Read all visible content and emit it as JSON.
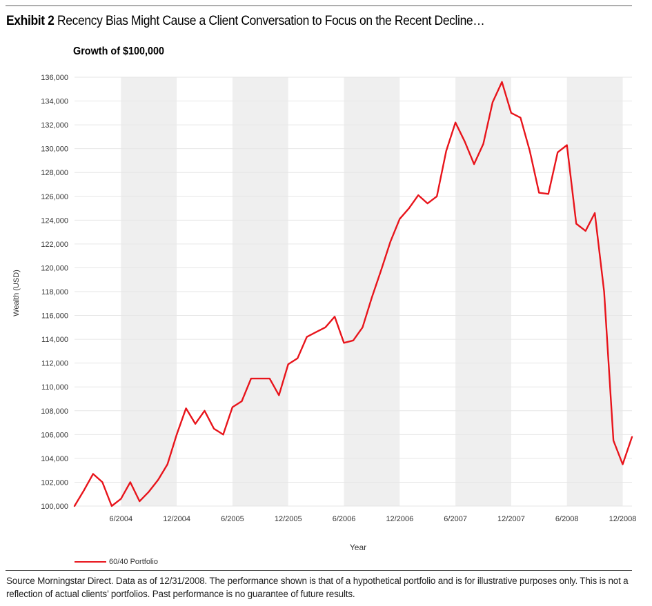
{
  "header": {
    "exhibit_label": "Exhibit 2",
    "exhibit_title": "Recency Bias Might Cause a Client Conversation to Focus on the Recent Decline…"
  },
  "footer": {
    "source": "Source Morningstar Direct. Data as of 12/31/2008. The performance shown is that of a hypothetical portfolio and is for illustrative purposes only. This is not a reflection of actual clients’ portfolios. Past performance is no guarantee of future results."
  },
  "colors": {
    "line": "#e8141b",
    "band": "#efefef",
    "grid": "#e6e6e6"
  },
  "chart_data": {
    "type": "line",
    "title": "Growth of $100,000",
    "xlabel": "Year",
    "ylabel": "Wealth (USD)",
    "ylim": [
      100000,
      136000
    ],
    "ytick_step": 2000,
    "x_start": "1/2004",
    "x_end": "1/2009",
    "grid": true,
    "shaded_bands": [
      [
        "6/2004",
        "12/2004"
      ],
      [
        "6/2005",
        "12/2005"
      ],
      [
        "6/2006",
        "12/2006"
      ],
      [
        "6/2007",
        "12/2007"
      ],
      [
        "6/2008",
        "12/2008"
      ]
    ],
    "x_ticks": [
      "6/2004",
      "12/2004",
      "6/2005",
      "12/2005",
      "6/2006",
      "12/2006",
      "6/2007",
      "12/2007",
      "6/2008",
      "12/2008"
    ],
    "legend_position": "bottom-left",
    "series": [
      {
        "name": "60/40 Portfolio",
        "x": [
          "1/2004",
          "2/2004",
          "3/2004",
          "4/2004",
          "5/2004",
          "6/2004",
          "7/2004",
          "8/2004",
          "9/2004",
          "10/2004",
          "11/2004",
          "12/2004",
          "1/2005",
          "2/2005",
          "3/2005",
          "4/2005",
          "5/2005",
          "6/2005",
          "7/2005",
          "8/2005",
          "9/2005",
          "10/2005",
          "11/2005",
          "12/2005",
          "1/2006",
          "2/2006",
          "3/2006",
          "4/2006",
          "5/2006",
          "6/2006",
          "7/2006",
          "8/2006",
          "9/2006",
          "10/2006",
          "11/2006",
          "12/2006",
          "1/2007",
          "2/2007",
          "3/2007",
          "4/2007",
          "5/2007",
          "6/2007",
          "7/2007",
          "8/2007",
          "9/2007",
          "10/2007",
          "11/2007",
          "12/2007",
          "1/2008",
          "2/2008",
          "3/2008",
          "4/2008",
          "5/2008",
          "6/2008",
          "7/2008",
          "8/2008",
          "9/2008",
          "10/2008",
          "11/2008",
          "12/2008",
          "1/2009"
        ],
        "values": [
          100000,
          101300,
          102700,
          102000,
          100000,
          100600,
          102000,
          100400,
          101200,
          102200,
          103500,
          106000,
          108200,
          106900,
          108000,
          106500,
          106000,
          108300,
          108800,
          110700,
          110700,
          110700,
          109300,
          111900,
          112400,
          114200,
          114600,
          115000,
          115900,
          113700,
          113900,
          115000,
          117500,
          119800,
          122200,
          124100,
          125000,
          126100,
          125400,
          126000,
          129800,
          132200,
          130600,
          128700,
          130400,
          133900,
          135600,
          133000,
          132600,
          129800,
          126300,
          126200,
          129700,
          130300,
          123700,
          123100,
          124600,
          118000,
          105500,
          103500,
          105800
        ]
      }
    ]
  }
}
